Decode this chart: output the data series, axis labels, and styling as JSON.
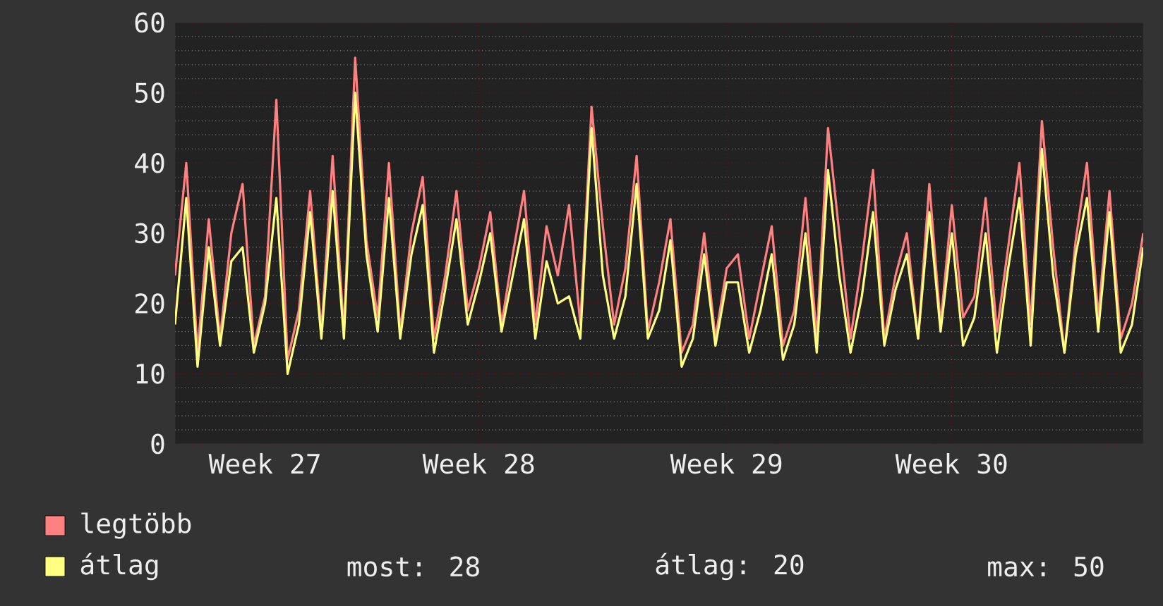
{
  "chart_data": {
    "type": "line",
    "categories": [
      null,
      null,
      null,
      null,
      null,
      null,
      null,
      null,
      "Week 27",
      null,
      null,
      null,
      null,
      null,
      null,
      null,
      null,
      null,
      null,
      null,
      null,
      null,
      null,
      null,
      null,
      null,
      null,
      "Week 28",
      null,
      null,
      null,
      null,
      null,
      null,
      null,
      null,
      null,
      null,
      null,
      null,
      null,
      null,
      null,
      null,
      null,
      null,
      null,
      null,
      null,
      "Week 29",
      null,
      null,
      null,
      null,
      null,
      null,
      null,
      null,
      null,
      null,
      null,
      null,
      null,
      null,
      null,
      null,
      null,
      null,
      null,
      "Week 30",
      null,
      null,
      null,
      null,
      null,
      null,
      null,
      null,
      null,
      null,
      null,
      null,
      null,
      null,
      null,
      null,
      null
    ],
    "series": [
      {
        "name": "legtöbb",
        "color": "#ff8080",
        "values": [
          24,
          40,
          13,
          32,
          15,
          30,
          37,
          14,
          21,
          49,
          12,
          19,
          36,
          16,
          41,
          16,
          55,
          29,
          18,
          40,
          16,
          30,
          38,
          15,
          24,
          36,
          19,
          25,
          33,
          17,
          27,
          36,
          17,
          31,
          24,
          34,
          17,
          48,
          31,
          17,
          25,
          41,
          16,
          23,
          32,
          13,
          17,
          30,
          15,
          25,
          27,
          15,
          23,
          31,
          14,
          19,
          35,
          15,
          45,
          30,
          15,
          26,
          39,
          15,
          24,
          30,
          15,
          37,
          17,
          34,
          18,
          21,
          35,
          16,
          28,
          40,
          17,
          46,
          28,
          13,
          29,
          40,
          18,
          36,
          15,
          20,
          30
        ]
      },
      {
        "name": "átlag",
        "color": "#ffff80",
        "values": [
          17,
          35,
          11,
          28,
          14,
          26,
          28,
          13,
          20,
          35,
          10,
          17,
          33,
          15,
          36,
          15,
          50,
          27,
          16,
          35,
          15,
          27,
          34,
          13,
          22,
          32,
          17,
          23,
          30,
          16,
          24,
          32,
          15,
          26,
          20,
          21,
          15,
          45,
          24,
          15,
          21,
          37,
          15,
          19,
          29,
          11,
          15,
          27,
          14,
          23,
          23,
          13,
          19,
          27,
          12,
          17,
          30,
          13,
          39,
          24,
          13,
          21,
          33,
          14,
          22,
          27,
          15,
          33,
          16,
          30,
          14,
          18,
          30,
          13,
          25,
          35,
          14,
          42,
          24,
          13,
          27,
          35,
          16,
          33,
          13,
          17,
          28
        ]
      }
    ],
    "ylim": [
      0,
      60
    ],
    "yticks": [
      0,
      10,
      20,
      30,
      40,
      50,
      60
    ],
    "grid": true,
    "legend": "bottom left",
    "marker": "none",
    "line_style": "solid",
    "annotations": [
      "most: 28",
      "átlag: 20",
      "max: 50"
    ]
  }
}
